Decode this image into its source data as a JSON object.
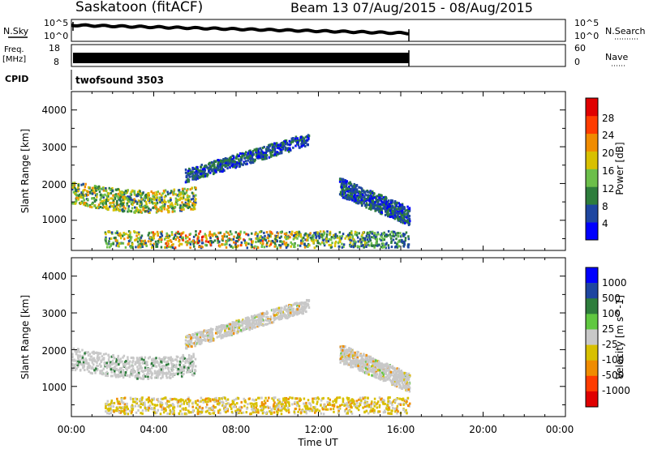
{
  "header": {
    "station": "Saskatoon (fitACF)",
    "beam_range": "Beam 13 07/Aug/2015 - 08/Aug/2015"
  },
  "side_labels": {
    "nsky": "N.Sky",
    "freq": "Freq.",
    "freq_unit": "[MHz]",
    "cpid": "CPID",
    "nsearch": "N.Search",
    "nave": "Nave"
  },
  "noise_panel": {
    "left_ticks": [
      "10^5",
      "10^0"
    ],
    "right_ticks": [
      "10^5",
      "10^0"
    ]
  },
  "freq_panel": {
    "left_ticks": [
      "18",
      "8"
    ],
    "right_ticks": [
      "60",
      "0"
    ]
  },
  "cpid_text": "twofsound 3503",
  "x_axis": {
    "label": "Time UT",
    "ticks": [
      "00:00",
      "04:00",
      "08:00",
      "12:00",
      "16:00",
      "20:00",
      "00:00"
    ]
  },
  "chart_data": [
    {
      "type": "heatmap",
      "title": "",
      "xlabel": "Time UT",
      "ylabel": "Slant Range [km]",
      "x_range_hours": [
        0,
        24
      ],
      "data_end_hours": 16.4,
      "ylim": [
        180,
        4500
      ],
      "y_ticks": [
        "1000",
        "2000",
        "3000",
        "4000"
      ],
      "colorbar": {
        "label": "Power [dB]",
        "ticks": [
          "4",
          "8",
          "12",
          "16",
          "20",
          "24",
          "28"
        ],
        "colors": [
          "#0000ff",
          "#1e46a0",
          "#2e7d3c",
          "#6cbf4a",
          "#d8c000",
          "#f08c00",
          "#ff3c00",
          "#e00000"
        ]
      },
      "features": [
        {
          "name": "lower E-region band",
          "time": [
            1.6,
            16.4
          ],
          "range_km": [
            250,
            700
          ],
          "peak_power_db": 28
        },
        {
          "name": "descending F band",
          "time": [
            0.0,
            6.0
          ],
          "range_km": [
            1350,
            2100
          ],
          "peak_power_db": 22
        },
        {
          "name": "mid arc",
          "time": [
            5.5,
            11.5
          ],
          "range_km": [
            2100,
            3300
          ],
          "peak_power_db": 10
        },
        {
          "name": "late F band",
          "time": [
            13.0,
            16.4
          ],
          "range_km": [
            900,
            2200
          ],
          "peak_power_db": 10
        }
      ]
    },
    {
      "type": "heatmap",
      "title": "",
      "xlabel": "Time UT",
      "ylabel": "Slant Range [km]",
      "x_range_hours": [
        0,
        24
      ],
      "data_end_hours": 16.4,
      "ylim": [
        180,
        4500
      ],
      "y_ticks": [
        "1000",
        "2000",
        "3000",
        "4000"
      ],
      "colorbar": {
        "label": "Velocity [m s^-1]",
        "ticks": [
          "1000",
          "500",
          "100",
          "25",
          "-25",
          "-100",
          "-500",
          "-1000"
        ],
        "colors": [
          "#0000ff",
          "#1e46a0",
          "#2e7d3c",
          "#60c840",
          "#c8c8c8",
          "#d8c000",
          "#f08c00",
          "#ff3c00",
          "#e00000"
        ]
      },
      "features": [
        {
          "name": "lower E-region band",
          "time": [
            1.6,
            16.4
          ],
          "range_km": [
            250,
            700
          ],
          "velocity_ms": -100
        },
        {
          "name": "descending F band",
          "time": [
            0.0,
            6.0
          ],
          "range_km": [
            1350,
            2100
          ],
          "velocity_ms": 0
        },
        {
          "name": "mid arc",
          "time": [
            5.5,
            11.5
          ],
          "range_km": [
            2100,
            3300
          ],
          "velocity_ms": 0
        },
        {
          "name": "late F band",
          "time": [
            13.0,
            16.4
          ],
          "range_km": [
            900,
            2200
          ],
          "velocity_ms": 0
        }
      ]
    }
  ]
}
